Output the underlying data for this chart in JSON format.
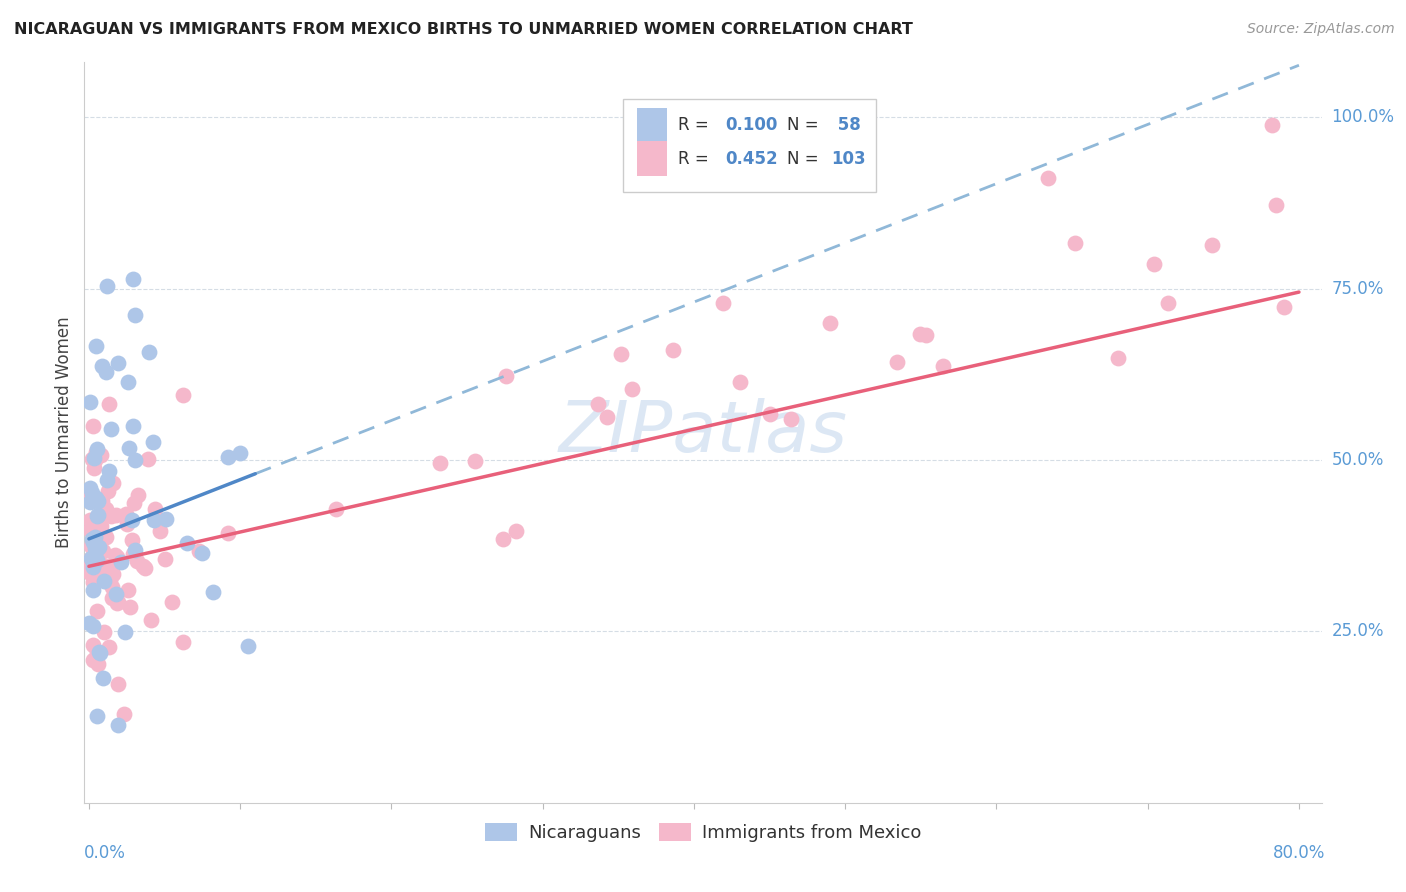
{
  "title": "NICARAGUAN VS IMMIGRANTS FROM MEXICO BIRTHS TO UNMARRIED WOMEN CORRELATION CHART",
  "source": "Source: ZipAtlas.com",
  "ylabel": "Births to Unmarried Women",
  "ytick_labels": [
    "25.0%",
    "50.0%",
    "75.0%",
    "100.0%"
  ],
  "ytick_values": [
    0.25,
    0.5,
    0.75,
    1.0
  ],
  "legend_blue_r": "R = 0.100",
  "legend_blue_n": "N =  58",
  "legend_pink_r": "R = 0.452",
  "legend_pink_n": "N = 103",
  "blue_color": "#aec6e8",
  "pink_color": "#f5b8cb",
  "blue_line_color": "#4f87c7",
  "pink_line_color": "#e8607a",
  "dashed_line_color": "#90b8d8",
  "watermark_color": "#c5d8ee",
  "xlim_max": 0.815,
  "ylim_min": 0.0,
  "ylim_max": 1.08,
  "n_blue": 58,
  "n_pink": 103
}
